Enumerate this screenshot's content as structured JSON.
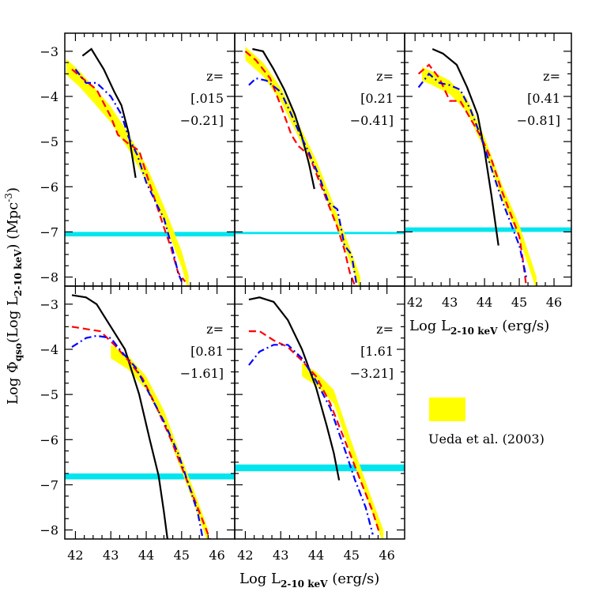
{
  "colors": {
    "ueda_band": "#ffff00",
    "cyan_band": "#00e5ee",
    "black_model": "#000000",
    "red_model": "#ff0000",
    "blue_model": "#0000ff",
    "frame": "#000000"
  },
  "axis_labels": {
    "x_bottom": "Log L2-10 keV (erg/s)",
    "x_bottom_prefix": "Log L",
    "x_bottom_sub": "2-10 keV",
    "x_bottom_suffix": " (erg/s)",
    "x_right": "Log L2-10 keV (erg/s)",
    "y_left": "Log Φqso(Log L2-10 keV)   (Mpc-3)",
    "y_part1": "Log Φ",
    "y_sub1": "qso",
    "y_part2": "(Log L",
    "y_sub2": "2-10 keV",
    "y_part3": ")    (Mpc",
    "y_sup": "-3",
    "y_part4": ")"
  },
  "legend": {
    "label": "Ueda et al. (2003)"
  },
  "chart_data": {
    "type": "line",
    "xlim": [
      41.7,
      46.5
    ],
    "ylim": [
      -8.2,
      -2.6
    ],
    "x_ticks": [
      42,
      43,
      44,
      45,
      46
    ],
    "y_ticks": [
      -3,
      -4,
      -5,
      -6,
      -7,
      -8
    ],
    "x_tick_labels": [
      "42",
      "43",
      "44",
      "45",
      "46"
    ],
    "y_tick_labels": [
      "−3",
      "−4",
      "−5",
      "−6",
      "−7",
      "−8"
    ],
    "panels": [
      {
        "z_label": "z=",
        "z_range": [
          "[.015",
          "−0.21]"
        ],
        "black": [
          [
            42.2,
            -3.1
          ],
          [
            42.45,
            -2.95
          ],
          [
            42.8,
            -3.4
          ],
          [
            43.1,
            -3.9
          ],
          [
            43.3,
            -4.2
          ],
          [
            43.5,
            -4.8
          ],
          [
            43.7,
            -5.8
          ]
        ],
        "red": [
          [
            41.9,
            -3.4
          ],
          [
            42.2,
            -3.6
          ],
          [
            42.6,
            -3.85
          ],
          [
            43.0,
            -4.45
          ],
          [
            43.2,
            -4.85
          ],
          [
            43.5,
            -5.05
          ],
          [
            43.8,
            -5.2
          ],
          [
            44.0,
            -5.7
          ],
          [
            44.25,
            -6.3
          ],
          [
            44.5,
            -6.9
          ],
          [
            44.7,
            -7.35
          ],
          [
            44.9,
            -7.9
          ],
          [
            45.1,
            -8.1
          ]
        ],
        "blue": [
          [
            42.0,
            -3.4
          ],
          [
            42.3,
            -3.7
          ],
          [
            42.6,
            -3.7
          ],
          [
            43.0,
            -4.0
          ],
          [
            43.3,
            -4.4
          ],
          [
            43.5,
            -4.9
          ],
          [
            43.75,
            -5.3
          ],
          [
            44.0,
            -5.9
          ],
          [
            44.3,
            -6.4
          ],
          [
            44.5,
            -6.7
          ],
          [
            44.75,
            -7.4
          ],
          [
            44.9,
            -7.9
          ],
          [
            45.0,
            -8.1
          ]
        ],
        "ueda": [
          [
            41.75,
            -3.35
          ],
          [
            42.1,
            -3.6
          ],
          [
            42.5,
            -3.95
          ],
          [
            43.0,
            -4.4
          ],
          [
            43.5,
            -5.0
          ],
          [
            44.0,
            -5.7
          ],
          [
            44.5,
            -6.6
          ],
          [
            45.0,
            -7.6
          ],
          [
            45.2,
            -8.15
          ]
        ],
        "ueda_width": 0.35,
        "cyan": [
          -7.1,
          -7.0
        ]
      },
      {
        "z_label": "z=",
        "z_range": [
          "[0.21",
          "−0.41]"
        ],
        "black": [
          [
            42.2,
            -2.95
          ],
          [
            42.5,
            -3.0
          ],
          [
            42.8,
            -3.4
          ],
          [
            43.1,
            -3.85
          ],
          [
            43.4,
            -4.4
          ],
          [
            43.6,
            -4.9
          ],
          [
            43.8,
            -5.5
          ],
          [
            43.95,
            -6.05
          ]
        ],
        "red": [
          [
            42.0,
            -3.0
          ],
          [
            42.3,
            -3.2
          ],
          [
            42.7,
            -3.6
          ],
          [
            43.0,
            -4.2
          ],
          [
            43.3,
            -4.85
          ],
          [
            43.5,
            -5.1
          ],
          [
            43.8,
            -5.3
          ],
          [
            44.1,
            -5.9
          ],
          [
            44.35,
            -6.4
          ],
          [
            44.6,
            -6.9
          ],
          [
            44.8,
            -7.4
          ],
          [
            44.95,
            -7.9
          ],
          [
            45.1,
            -8.2
          ]
        ],
        "blue": [
          [
            42.1,
            -3.75
          ],
          [
            42.3,
            -3.6
          ],
          [
            42.6,
            -3.65
          ],
          [
            43.0,
            -3.9
          ],
          [
            43.3,
            -4.4
          ],
          [
            43.55,
            -4.85
          ],
          [
            43.8,
            -5.25
          ],
          [
            44.1,
            -5.8
          ],
          [
            44.35,
            -6.35
          ],
          [
            44.6,
            -6.5
          ],
          [
            44.8,
            -7.3
          ],
          [
            45.0,
            -7.5
          ],
          [
            45.15,
            -8.2
          ]
        ],
        "ueda": [
          [
            42.0,
            -3.05
          ],
          [
            42.5,
            -3.4
          ],
          [
            43.0,
            -3.95
          ],
          [
            43.5,
            -4.75
          ],
          [
            44.0,
            -5.55
          ],
          [
            44.5,
            -6.55
          ],
          [
            45.0,
            -7.6
          ],
          [
            45.25,
            -8.15
          ]
        ],
        "ueda_width": 0.3,
        "cyan": [
          -7.05,
          -7.0
        ]
      },
      {
        "z_label": "z=",
        "z_range": [
          "[0.41",
          "−0.81]"
        ],
        "black": [
          [
            42.5,
            -2.95
          ],
          [
            42.8,
            -3.05
          ],
          [
            43.2,
            -3.3
          ],
          [
            43.5,
            -3.8
          ],
          [
            43.8,
            -4.4
          ],
          [
            44.0,
            -5.2
          ],
          [
            44.2,
            -6.2
          ],
          [
            44.4,
            -7.3
          ]
        ],
        "red": [
          [
            42.1,
            -3.5
          ],
          [
            42.4,
            -3.3
          ],
          [
            42.7,
            -3.6
          ],
          [
            43.0,
            -4.1
          ],
          [
            43.3,
            -4.1
          ],
          [
            43.6,
            -4.5
          ],
          [
            43.9,
            -4.9
          ],
          [
            44.2,
            -5.4
          ],
          [
            44.5,
            -6.1
          ],
          [
            44.8,
            -6.7
          ],
          [
            45.0,
            -7.1
          ],
          [
            45.1,
            -7.6
          ],
          [
            45.2,
            -8.2
          ]
        ],
        "blue": [
          [
            42.1,
            -3.8
          ],
          [
            42.4,
            -3.5
          ],
          [
            42.7,
            -3.7
          ],
          [
            43.0,
            -3.75
          ],
          [
            43.3,
            -3.85
          ],
          [
            43.6,
            -4.3
          ],
          [
            43.9,
            -4.9
          ],
          [
            44.2,
            -5.6
          ],
          [
            44.5,
            -6.3
          ],
          [
            44.8,
            -6.9
          ],
          [
            45.0,
            -7.3
          ],
          [
            45.2,
            -8.0
          ]
        ],
        "ueda": [
          [
            42.2,
            -3.5
          ],
          [
            42.5,
            -3.6
          ],
          [
            43.0,
            -3.8
          ],
          [
            43.5,
            -4.2
          ],
          [
            44.0,
            -5.05
          ],
          [
            44.5,
            -6.1
          ],
          [
            45.0,
            -7.0
          ],
          [
            45.5,
            -8.15
          ]
        ],
        "ueda_width": 0.3,
        "cyan": [
          -7.0,
          -6.9
        ]
      },
      {
        "z_label": "z=",
        "z_range": [
          "[0.81",
          "−1.61]"
        ],
        "black": [
          [
            41.9,
            -2.8
          ],
          [
            42.3,
            -2.85
          ],
          [
            42.6,
            -3.0
          ],
          [
            43.0,
            -3.5
          ],
          [
            43.4,
            -4.0
          ],
          [
            43.8,
            -5.0
          ],
          [
            44.1,
            -6.0
          ],
          [
            44.35,
            -6.8
          ],
          [
            44.5,
            -7.6
          ],
          [
            44.6,
            -8.2
          ]
        ],
        "red": [
          [
            41.9,
            -3.5
          ],
          [
            42.3,
            -3.55
          ],
          [
            42.7,
            -3.6
          ],
          [
            43.1,
            -3.9
          ],
          [
            43.5,
            -4.25
          ],
          [
            43.9,
            -4.65
          ],
          [
            44.3,
            -5.3
          ],
          [
            44.7,
            -6.0
          ],
          [
            45.0,
            -6.6
          ],
          [
            45.3,
            -7.2
          ],
          [
            45.6,
            -7.8
          ],
          [
            45.8,
            -8.2
          ]
        ],
        "blue": [
          [
            41.9,
            -3.95
          ],
          [
            42.3,
            -3.75
          ],
          [
            42.6,
            -3.7
          ],
          [
            43.0,
            -3.75
          ],
          [
            43.3,
            -4.05
          ],
          [
            43.7,
            -4.4
          ],
          [
            44.1,
            -5.0
          ],
          [
            44.5,
            -5.6
          ],
          [
            44.9,
            -6.3
          ],
          [
            45.2,
            -7.0
          ],
          [
            45.45,
            -7.6
          ],
          [
            45.6,
            -8.2
          ]
        ],
        "ueda": [
          [
            43.0,
            -4.05
          ],
          [
            43.5,
            -4.3
          ],
          [
            44.0,
            -4.75
          ],
          [
            44.5,
            -5.5
          ],
          [
            45.0,
            -6.55
          ],
          [
            45.5,
            -7.6
          ],
          [
            45.75,
            -8.15
          ]
        ],
        "ueda_width": 0.3,
        "cyan": [
          -6.88,
          -6.75
        ]
      },
      {
        "z_label": "z=",
        "z_range": [
          "[1.61",
          "−3.21]"
        ],
        "black": [
          [
            42.1,
            -2.9
          ],
          [
            42.4,
            -2.85
          ],
          [
            42.8,
            -2.95
          ],
          [
            43.2,
            -3.35
          ],
          [
            43.6,
            -4.0
          ],
          [
            44.0,
            -4.85
          ],
          [
            44.3,
            -5.7
          ],
          [
            44.5,
            -6.3
          ],
          [
            44.65,
            -6.9
          ]
        ],
        "red": [
          [
            42.1,
            -3.6
          ],
          [
            42.4,
            -3.6
          ],
          [
            42.8,
            -3.8
          ],
          [
            43.2,
            -3.95
          ],
          [
            43.6,
            -4.25
          ],
          [
            44.0,
            -4.6
          ],
          [
            44.4,
            -5.2
          ],
          [
            44.8,
            -6.0
          ],
          [
            45.2,
            -6.8
          ],
          [
            45.6,
            -7.6
          ],
          [
            45.8,
            -8.1
          ]
        ],
        "blue": [
          [
            42.1,
            -4.35
          ],
          [
            42.4,
            -4.05
          ],
          [
            42.8,
            -3.9
          ],
          [
            43.2,
            -3.9
          ],
          [
            43.6,
            -4.2
          ],
          [
            44.0,
            -4.7
          ],
          [
            44.4,
            -5.3
          ],
          [
            44.8,
            -6.2
          ],
          [
            45.1,
            -6.9
          ],
          [
            45.4,
            -7.5
          ],
          [
            45.6,
            -8.1
          ]
        ],
        "ueda": [
          [
            43.6,
            -4.45
          ],
          [
            44.0,
            -4.65
          ],
          [
            44.5,
            -5.05
          ],
          [
            45.0,
            -6.2
          ],
          [
            45.5,
            -7.3
          ],
          [
            45.9,
            -8.15
          ]
        ],
        "ueda_width": 0.3,
        "cyan": [
          -6.7,
          -6.55
        ]
      }
    ]
  }
}
